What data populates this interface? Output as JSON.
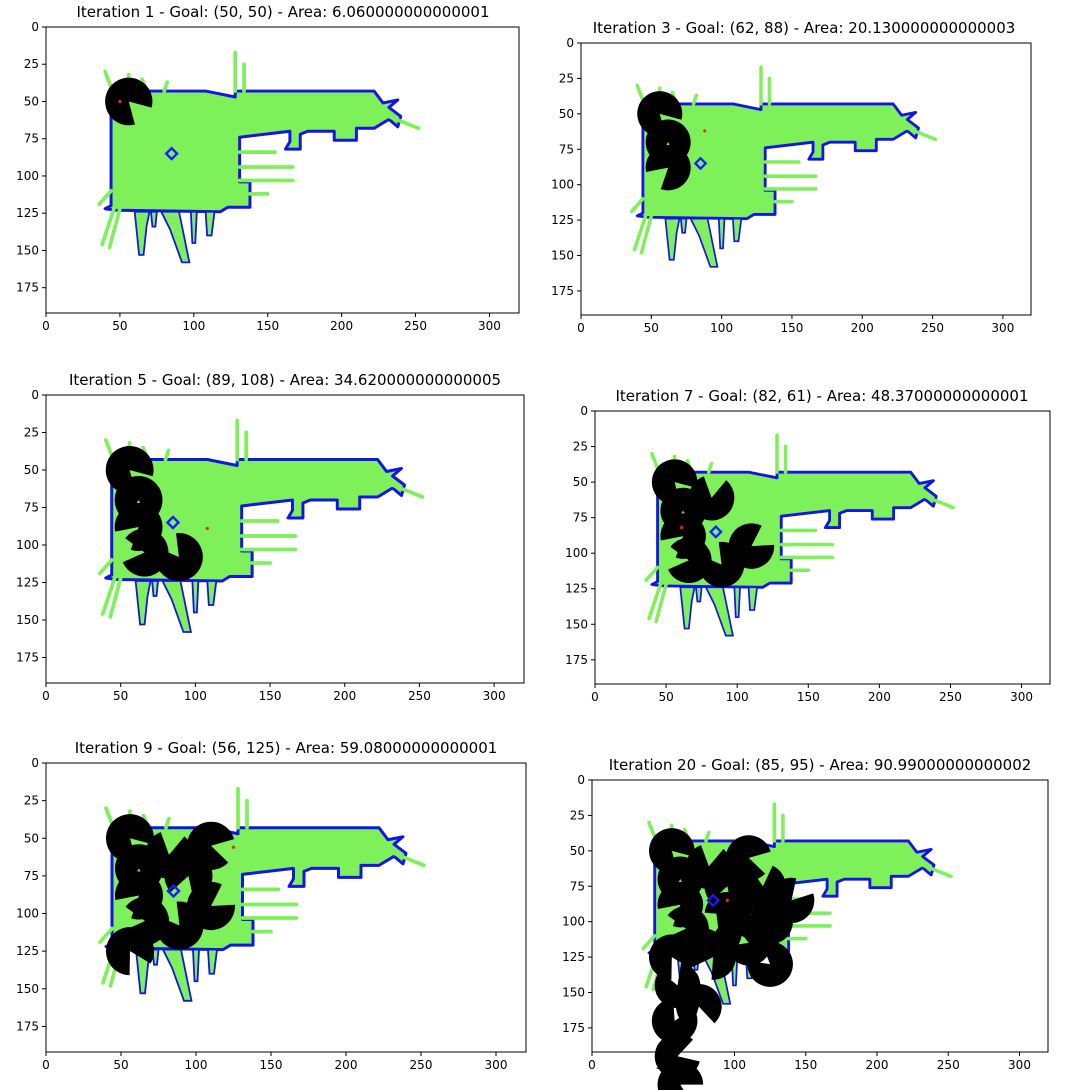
{
  "chart_data": [
    {
      "type": "heatmap",
      "title": "Iteration 1 - Goal: (50, 50) - Area: 6.060000000000001",
      "iteration": 1,
      "goal": [
        50,
        50
      ],
      "area": 6.060000000000001,
      "xlim": [
        0,
        320
      ],
      "ylim": [
        192,
        0
      ],
      "xticks": [
        0,
        50,
        100,
        150,
        200,
        250,
        300
      ],
      "yticks": [
        0,
        25,
        50,
        75,
        100,
        125,
        150,
        175
      ],
      "robot": [
        85,
        85
      ],
      "explored_sectors": [
        [
          50,
          56
        ]
      ]
    },
    {
      "type": "heatmap",
      "title": "Iteration 3 - Goal: (62, 88) - Area: 20.130000000000003",
      "iteration": 3,
      "goal": [
        62,
        88
      ],
      "area": 20.130000000000003,
      "xlim": [
        0,
        320
      ],
      "ylim": [
        192,
        0
      ],
      "xticks": [
        0,
        50,
        100,
        150,
        200,
        250,
        300
      ],
      "yticks": [
        0,
        25,
        50,
        75,
        100,
        125,
        150,
        175
      ],
      "robot": [
        85,
        85
      ],
      "explored_sectors": [
        [
          50,
          56
        ],
        [
          70,
          62
        ],
        [
          88,
          62
        ]
      ]
    },
    {
      "type": "heatmap",
      "title": "Iteration 5 - Goal: (89, 108) - Area: 34.620000000000005",
      "iteration": 5,
      "goal": [
        89,
        108
      ],
      "area": 34.620000000000005,
      "xlim": [
        0,
        320
      ],
      "ylim": [
        192,
        0
      ],
      "xticks": [
        0,
        50,
        100,
        150,
        200,
        250,
        300
      ],
      "yticks": [
        0,
        25,
        50,
        75,
        100,
        125,
        150,
        175
      ],
      "robot": [
        85,
        85
      ],
      "explored_sectors": [
        [
          50,
          56
        ],
        [
          70,
          62
        ],
        [
          88,
          62
        ],
        [
          105,
          66
        ],
        [
          108,
          89
        ]
      ]
    },
    {
      "type": "heatmap",
      "title": "Iteration 7 - Goal: (82, 61) - Area: 48.37000000000001",
      "iteration": 7,
      "goal": [
        82,
        61
      ],
      "area": 48.37000000000001,
      "xlim": [
        0,
        320
      ],
      "ylim": [
        192,
        0
      ],
      "xticks": [
        0,
        50,
        100,
        150,
        200,
        250,
        300
      ],
      "yticks": [
        0,
        25,
        50,
        75,
        100,
        125,
        150,
        175
      ],
      "robot": [
        85,
        85
      ],
      "explored_sectors": [
        [
          50,
          56
        ],
        [
          70,
          62
        ],
        [
          88,
          62
        ],
        [
          105,
          66
        ],
        [
          108,
          89
        ],
        [
          61,
          82
        ],
        [
          95,
          110
        ]
      ]
    },
    {
      "type": "heatmap",
      "title": "Iteration 9 - Goal: (56, 125) - Area: 59.08000000000001",
      "iteration": 9,
      "goal": [
        56,
        125
      ],
      "area": 59.08000000000001,
      "xlim": [
        0,
        320
      ],
      "ylim": [
        192,
        0
      ],
      "xticks": [
        0,
        50,
        100,
        150,
        200,
        250,
        300
      ],
      "yticks": [
        0,
        25,
        50,
        75,
        100,
        125,
        150,
        175
      ],
      "robot": [
        85,
        85
      ],
      "explored_sectors": [
        [
          50,
          56
        ],
        [
          70,
          62
        ],
        [
          88,
          62
        ],
        [
          105,
          66
        ],
        [
          108,
          89
        ],
        [
          61,
          82
        ],
        [
          95,
          110
        ],
        [
          55,
          110
        ],
        [
          125,
          56
        ],
        [
          75,
          95
        ]
      ]
    },
    {
      "type": "heatmap",
      "title": "Iteration 20 - Goal: (85, 95) - Area: 90.99000000000002",
      "iteration": 20,
      "goal": [
        85,
        95
      ],
      "area": 90.99000000000002,
      "xlim": [
        0,
        320
      ],
      "ylim": [
        192,
        0
      ],
      "xticks": [
        0,
        50,
        100,
        150,
        200,
        250,
        300
      ],
      "yticks": [
        0,
        25,
        50,
        75,
        100,
        125,
        150,
        175
      ],
      "robot": [
        85,
        85
      ],
      "explored_sectors": [
        [
          50,
          56
        ],
        [
          70,
          62
        ],
        [
          88,
          62
        ],
        [
          105,
          66
        ],
        [
          108,
          89
        ],
        [
          61,
          82
        ],
        [
          95,
          110
        ],
        [
          55,
          110
        ],
        [
          125,
          56
        ],
        [
          75,
          95
        ],
        [
          95,
          95
        ],
        [
          115,
          110
        ],
        [
          145,
          60
        ],
        [
          170,
          58
        ],
        [
          195,
          60
        ],
        [
          215,
          62
        ],
        [
          160,
          75
        ],
        [
          125,
          85
        ],
        [
          100,
          125
        ],
        [
          130,
          125
        ],
        [
          75,
          120
        ],
        [
          85,
          140
        ]
      ]
    }
  ],
  "colors": {
    "free_space": "#7df05a",
    "boundary": "#1414e6",
    "explored": "#000000",
    "goal": "#ff2020",
    "robot": "#1a1aff"
  }
}
